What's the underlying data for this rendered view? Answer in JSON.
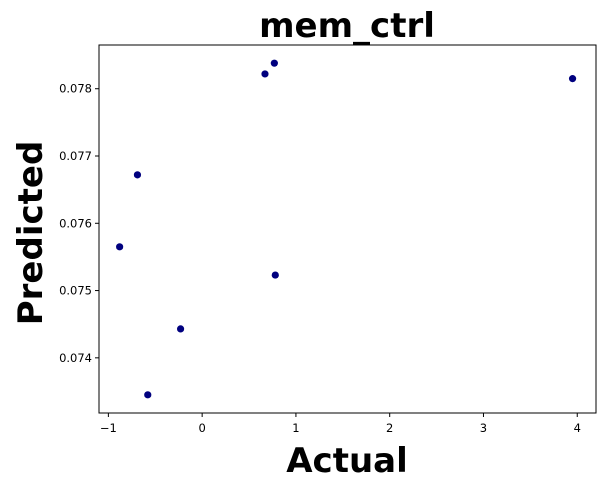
{
  "chart_data": {
    "type": "scatter",
    "title": "mem_ctrl",
    "xlabel": "Actual",
    "ylabel": "Predicted",
    "xlim": [
      -1.1,
      4.2
    ],
    "ylim": [
      0.07318,
      0.07865
    ],
    "xticks": [
      -1,
      0,
      1,
      2,
      3,
      4
    ],
    "xtick_labels": [
      "−1",
      "0",
      "1",
      "2",
      "3",
      "4"
    ],
    "yticks": [
      0.074,
      0.075,
      0.076,
      0.077,
      0.078
    ],
    "ytick_labels": [
      "0.074",
      "0.075",
      "0.076",
      "0.077",
      "0.078"
    ],
    "grid": false,
    "marker_color": "#00007f",
    "points": [
      {
        "x": -0.88,
        "y": 0.07565
      },
      {
        "x": -0.69,
        "y": 0.07672
      },
      {
        "x": -0.58,
        "y": 0.07345
      },
      {
        "x": -0.23,
        "y": 0.07443
      },
      {
        "x": 0.67,
        "y": 0.07822
      },
      {
        "x": 0.77,
        "y": 0.07838
      },
      {
        "x": 0.78,
        "y": 0.07523
      },
      {
        "x": 3.95,
        "y": 0.07815
      }
    ]
  }
}
